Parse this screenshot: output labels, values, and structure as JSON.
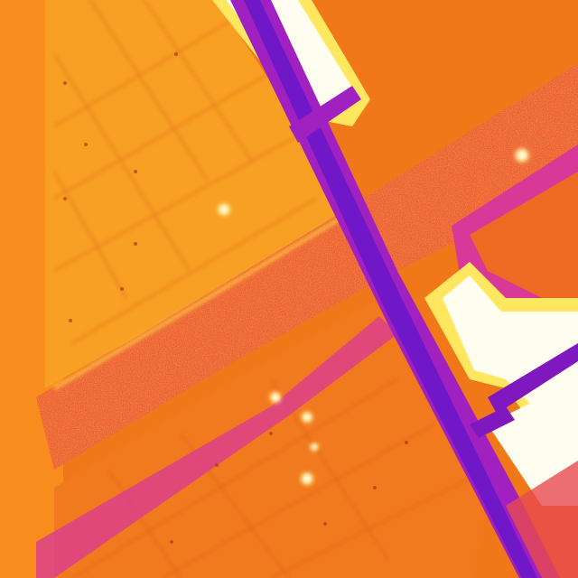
{
  "image": {
    "kind": "thermal aerial view",
    "palette": {
      "background": "#f07818",
      "panel_light": "#f8a020",
      "panel_dark": "#e86020",
      "hot_core": "#fffcf0",
      "hot_edge": "#ffe860",
      "cool_band": "#a020c0",
      "cool_deep": "#7018c8",
      "warm_magenta": "#d83898",
      "road_warm": "#ec5a30",
      "spot": "#fff8b0"
    }
  }
}
